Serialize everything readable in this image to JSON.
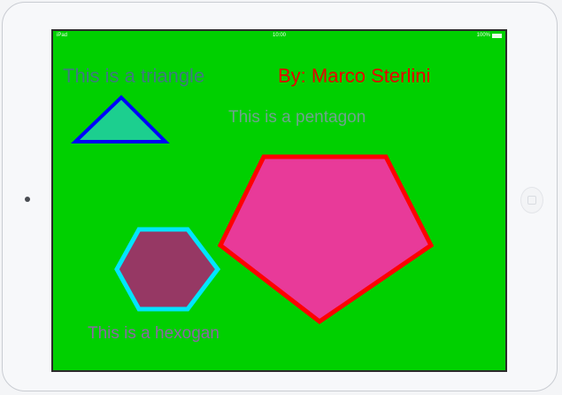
{
  "status_bar": {
    "carrier": "iPad",
    "time": "10:00",
    "battery": "100%"
  },
  "labels": {
    "triangle": "This is a triangle",
    "author": "By: Marco Sterlini",
    "pentagon": "This is a pentagon",
    "hexagon": "This is a hexogan"
  },
  "shapes": {
    "triangle": {
      "fill": "#1ccf8f",
      "stroke": "#0000ff"
    },
    "pentagon": {
      "fill": "#e83a99",
      "stroke": "#ff0000"
    },
    "hexagon": {
      "fill": "#963864",
      "stroke": "#00e5ff"
    }
  },
  "colors": {
    "screen_background": "#00d000",
    "device_frame": "#f7f8fa"
  },
  "icons": {
    "camera": "camera-icon",
    "home": "home-button-icon",
    "battery": "battery-icon"
  }
}
